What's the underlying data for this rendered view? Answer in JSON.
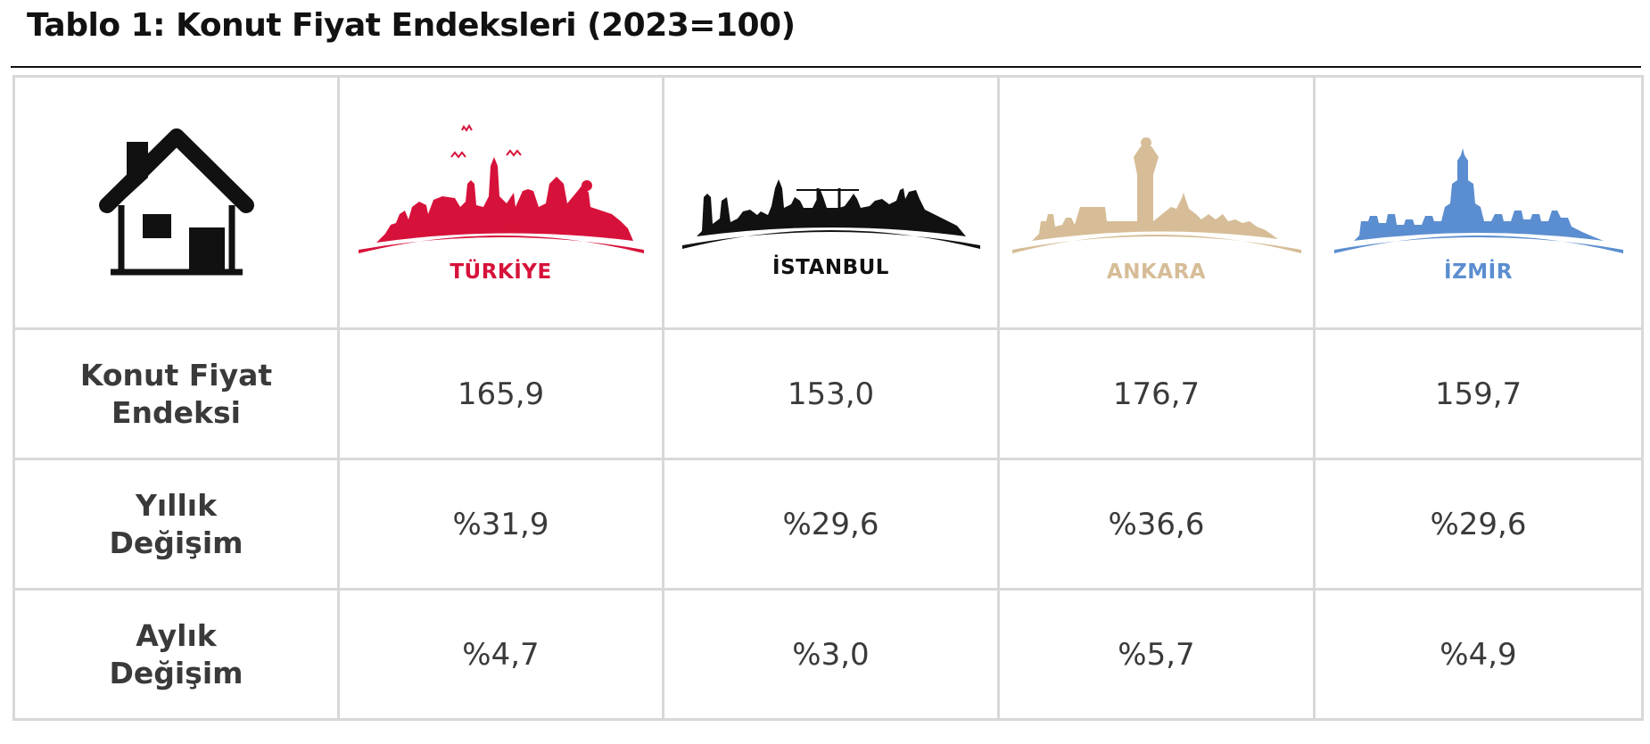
{
  "title": "Tablo 1: Konut Fiyat Endeksleri (2023=100)",
  "header": {
    "house_icon": "house-icon",
    "cities": [
      {
        "name": "TÜRKİYE",
        "color": "#d7123a",
        "icon": "turkiye-skyline-icon"
      },
      {
        "name": "İSTANBUL",
        "color": "#111111",
        "icon": "istanbul-skyline-icon"
      },
      {
        "name": "ANKARA",
        "color": "#d6bd97",
        "icon": "ankara-skyline-icon"
      },
      {
        "name": "İZMİR",
        "color": "#5b8ed0",
        "icon": "izmir-skyline-icon"
      }
    ]
  },
  "rows": [
    {
      "label_line1": "Konut Fiyat",
      "label_line2": "Endeksi",
      "values": [
        "165,9",
        "153,0",
        "176,7",
        "159,7"
      ]
    },
    {
      "label_line1": "Yıllık",
      "label_line2": "Değişim",
      "values": [
        "%31,9",
        "%29,6",
        "%36,6",
        "%29,6"
      ]
    },
    {
      "label_line1": "Aylık",
      "label_line2": "Değişim",
      "values": [
        "%4,7",
        "%3,0",
        "%5,7",
        "%4,9"
      ]
    }
  ]
}
